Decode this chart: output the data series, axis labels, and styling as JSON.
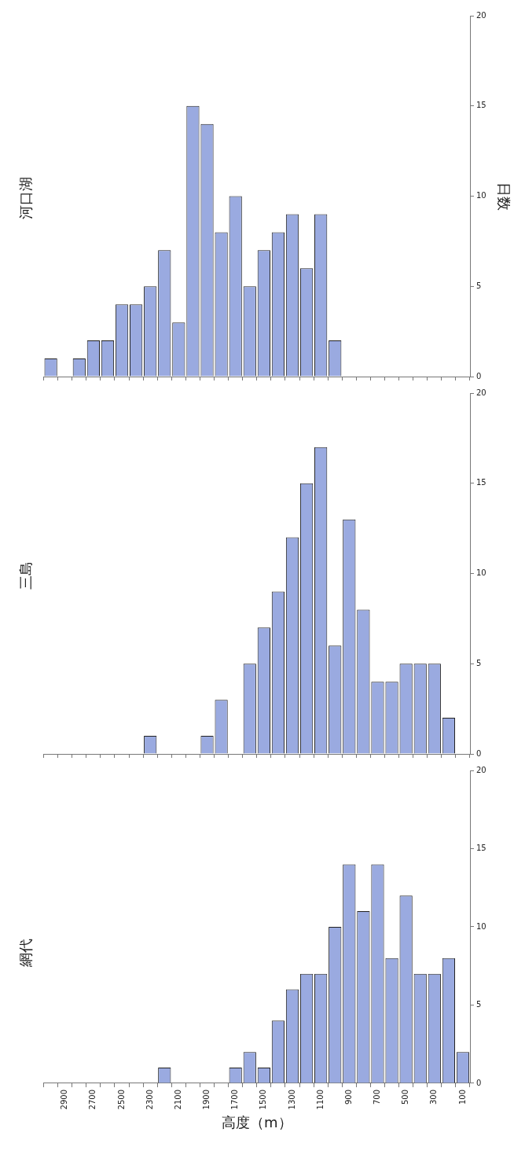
{
  "chart_data": [
    {
      "type": "bar",
      "title": "河口湖",
      "ylabel": "日数",
      "categories": [
        null,
        "2900",
        null,
        "2700",
        null,
        "2500",
        null,
        "2300",
        null,
        "2100",
        null,
        "1900",
        null,
        "1700",
        null,
        "1500",
        null,
        "1300",
        null,
        "1100",
        null,
        "900",
        null,
        "700",
        null,
        "500",
        null,
        "300",
        null,
        "100"
      ],
      "values": [
        1,
        0,
        1,
        2,
        2,
        4,
        4,
        5,
        7,
        3,
        15,
        14,
        8,
        10,
        5,
        7,
        8,
        9,
        6,
        9,
        2,
        0,
        0,
        0,
        0,
        0,
        0,
        0,
        0,
        0
      ],
      "color": "#9aaae0",
      "ylim": [
        0,
        20
      ],
      "yticks": [
        0,
        5,
        10,
        15,
        20
      ],
      "grid": false,
      "tick_labels": "y"
    },
    {
      "type": "bar",
      "title": "三島",
      "categories": [
        null,
        "2900",
        null,
        "2700",
        null,
        "2500",
        null,
        "2300",
        null,
        "2100",
        null,
        "1900",
        null,
        "1700",
        null,
        "1500",
        null,
        "1300",
        null,
        "1100",
        null,
        "900",
        null,
        "700",
        null,
        "500",
        null,
        "300",
        null,
        "100"
      ],
      "values": [
        0,
        0,
        0,
        0,
        0,
        0,
        0,
        1,
        0,
        0,
        0,
        1,
        3,
        0,
        5,
        7,
        9,
        12,
        15,
        17,
        6,
        13,
        8,
        4,
        4,
        5,
        5,
        5,
        2,
        0
      ],
      "color": "#9aaae0",
      "ylim": [
        0,
        20
      ],
      "yticks": [
        0,
        5,
        10,
        15,
        20
      ],
      "grid": false,
      "tick_labels": "y"
    },
    {
      "type": "bar",
      "title": "網代",
      "xlabel": "高度（m）",
      "categories": [
        null,
        "2900",
        null,
        "2700",
        null,
        "2500",
        null,
        "2300",
        null,
        "2100",
        null,
        "1900",
        null,
        "1700",
        null,
        "1500",
        null,
        "1300",
        null,
        "1100",
        null,
        "900",
        null,
        "700",
        null,
        "500",
        null,
        "300",
        null,
        "100"
      ],
      "values": [
        0,
        0,
        0,
        0,
        0,
        0,
        0,
        0,
        1,
        0,
        0,
        0,
        0,
        1,
        2,
        1,
        4,
        6,
        7,
        7,
        10,
        14,
        11,
        14,
        8,
        12,
        7,
        7,
        8,
        2
      ],
      "color": "#9aaae0",
      "ylim": [
        0,
        20
      ],
      "yticks": [
        0,
        5,
        10,
        15,
        20
      ],
      "grid": false
    }
  ]
}
